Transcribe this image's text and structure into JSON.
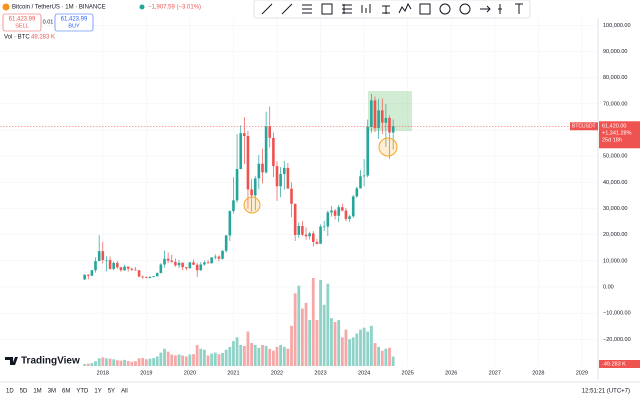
{
  "header": {
    "symbol": "Bitcoin / TetherUS · 1M · BINANCE",
    "change": "−1,907.59 (−3.01%)",
    "sell_price": "61,423.99",
    "sell_label": "SELL",
    "spread": "0.01",
    "buy_price": "61,423.99",
    "buy_label": "BUY",
    "vol_label": "Vol · BTC",
    "vol_value": "49.283 K"
  },
  "footer": {
    "ranges": [
      "1D",
      "5D",
      "1M",
      "3M",
      "6M",
      "YTD",
      "1Y",
      "5Y",
      "All"
    ],
    "clock": "12:51:21 (UTC+7)",
    "brand": "TradingView"
  },
  "badge": {
    "symbol": "BTCUSDT",
    "change": "+1,341.28%",
    "countdown": "25d 18h",
    "volume": "-49.283 K"
  },
  "chart_data": {
    "type": "candlestick",
    "x": [
      2017.583,
      2017.667,
      2017.75,
      2017.833,
      2017.917,
      2018.0,
      2018.083,
      2018.167,
      2018.25,
      2018.333,
      2018.417,
      2018.5,
      2018.583,
      2018.667,
      2018.75,
      2018.833,
      2018.917,
      2019.0,
      2019.083,
      2019.167,
      2019.25,
      2019.333,
      2019.417,
      2019.5,
      2019.583,
      2019.667,
      2019.75,
      2019.833,
      2019.917,
      2020.0,
      2020.083,
      2020.167,
      2020.25,
      2020.333,
      2020.417,
      2020.5,
      2020.583,
      2020.667,
      2020.75,
      2020.833,
      2020.917,
      2021.0,
      2021.083,
      2021.167,
      2021.25,
      2021.333,
      2021.417,
      2021.5,
      2021.583,
      2021.667,
      2021.75,
      2021.833,
      2021.917,
      2022.0,
      2022.083,
      2022.167,
      2022.25,
      2022.333,
      2022.417,
      2022.5,
      2022.583,
      2022.667,
      2022.75,
      2022.833,
      2022.917,
      2023.0,
      2023.083,
      2023.167,
      2023.25,
      2023.333,
      2023.417,
      2023.5,
      2023.583,
      2023.667,
      2023.75,
      2023.833,
      2023.917,
      2024.0,
      2024.083,
      2024.167,
      2024.25,
      2024.333,
      2024.417,
      2024.5,
      2024.583,
      2024.667
    ],
    "series": [
      {
        "name": "BTCUSDT",
        "up_color": "#26a69a",
        "down_color": "#ef5350",
        "open": [
          2900,
          4700,
          4300,
          6400,
          9900,
          13700,
          10300,
          10300,
          6900,
          9200,
          7500,
          6400,
          7800,
          7000,
          6600,
          6400,
          4000,
          3700,
          3400,
          3800,
          4100,
          5300,
          8600,
          10800,
          10100,
          9600,
          8300,
          9200,
          7600,
          7200,
          9400,
          8500,
          6400,
          8600,
          9400,
          9100,
          11300,
          11600,
          10800,
          13800,
          19700,
          29000,
          33100,
          45100,
          58800,
          57700,
          37300,
          35000,
          41500,
          47100,
          43800,
          61300,
          57000,
          46200,
          38500,
          43200,
          45500,
          37600,
          31800,
          19900,
          23300,
          20000,
          19400,
          20500,
          17200,
          16500,
          23100,
          23100,
          28500,
          29200,
          27200,
          30500,
          29200,
          26000,
          27000,
          34600,
          37700,
          42300,
          42600,
          61200,
          71300,
          60700,
          67500,
          62800,
          64600,
          59000
        ],
        "high": [
          4800,
          4900,
          6500,
          11300,
          19800,
          17200,
          11800,
          11700,
          9800,
          10000,
          7800,
          8500,
          7800,
          7400,
          7700,
          6500,
          4300,
          4100,
          4200,
          4100,
          5600,
          9100,
          13900,
          13200,
          12300,
          10900,
          10400,
          9500,
          7700,
          9600,
          10500,
          9200,
          9500,
          10100,
          10400,
          11400,
          12500,
          12100,
          14100,
          19900,
          29300,
          41900,
          58400,
          61800,
          64900,
          59600,
          41300,
          42400,
          50500,
          52900,
          67000,
          69000,
          59000,
          48000,
          45800,
          48200,
          47400,
          40000,
          31900,
          24700,
          25200,
          22800,
          21100,
          21400,
          18400,
          23900,
          25200,
          29200,
          31000,
          29800,
          31400,
          31800,
          30200,
          27500,
          35200,
          38400,
          44700,
          48900,
          64000,
          73800,
          72800,
          71900,
          72000,
          70000,
          65600,
          64000
        ],
        "low": [
          2600,
          2900,
          4100,
          5500,
          10900,
          9000,
          6000,
          6600,
          6400,
          7000,
          5800,
          6100,
          5900,
          6100,
          6200,
          3600,
          3200,
          3400,
          3400,
          3700,
          4100,
          5300,
          7400,
          9100,
          9300,
          7700,
          7300,
          6500,
          6400,
          6900,
          8400,
          3800,
          6200,
          8100,
          8900,
          8900,
          10500,
          9900,
          10400,
          13200,
          17600,
          28100,
          32300,
          45000,
          47000,
          30000,
          28800,
          29300,
          37300,
          39600,
          43300,
          53300,
          42000,
          32900,
          34300,
          37200,
          37600,
          26700,
          17600,
          18800,
          19500,
          18100,
          18200,
          15500,
          16300,
          16500,
          21400,
          19500,
          26900,
          25800,
          24800,
          28900,
          25200,
          24900,
          26500,
          34100,
          37600,
          38500,
          41900,
          59000,
          59200,
          56600,
          58400,
          53500,
          49000,
          52600
        ],
        "close": [
          4700,
          4300,
          6400,
          9900,
          13700,
          10300,
          10300,
          6900,
          9200,
          7500,
          6400,
          7800,
          7000,
          6600,
          6400,
          4000,
          3700,
          3400,
          3800,
          4100,
          5300,
          8600,
          10800,
          10100,
          9600,
          8300,
          9200,
          7600,
          7200,
          9400,
          8500,
          6400,
          8600,
          9400,
          9100,
          11300,
          11600,
          10800,
          13800,
          19700,
          29000,
          33100,
          45100,
          58800,
          57700,
          37300,
          35000,
          41500,
          47100,
          43800,
          61300,
          57000,
          46200,
          38500,
          43200,
          45500,
          37600,
          31800,
          19900,
          23300,
          20000,
          19400,
          20500,
          17200,
          16500,
          23100,
          23100,
          28500,
          29200,
          27200,
          30500,
          29200,
          26000,
          27000,
          34600,
          37700,
          42300,
          42600,
          61200,
          71300,
          60700,
          67500,
          62800,
          64600,
          59000,
          61400
        ]
      },
      {
        "name": "Vol · BTC",
        "up_color": "#8fd3c8",
        "down_color": "#f5a8a8",
        "values": [
          10,
          12,
          15,
          25,
          40,
          45,
          40,
          38,
          35,
          30,
          28,
          32,
          26,
          22,
          25,
          40,
          42,
          35,
          38,
          42,
          50,
          70,
          90,
          75,
          60,
          55,
          60,
          55,
          50,
          60,
          62,
          110,
          90,
          85,
          55,
          65,
          70,
          62,
          68,
          85,
          100,
          130,
          150,
          110,
          105,
          180,
          120,
          110,
          95,
          110,
          105,
          90,
          80,
          100,
          110,
          100,
          90,
          210,
          380,
          420,
          300,
          330,
          240,
          460,
          240,
          450,
          320,
          430,
          250,
          230,
          240,
          150,
          190,
          140,
          150,
          170,
          190,
          200,
          180,
          210,
          120,
          100,
          80,
          90,
          95,
          49.283
        ]
      }
    ],
    "last_price": {
      "value": 61420,
      "label": "61,420.00"
    },
    "xlim": [
      2015.64,
      2029.37
    ],
    "xticks": [
      2018,
      2019,
      2020,
      2021,
      2022,
      2023,
      2024,
      2025,
      2026,
      2027,
      2028,
      2029
    ],
    "ylim": [
      -30200,
      102800
    ],
    "yticks": [
      {
        "value": -20000,
        "label": "−20,000.00"
      },
      {
        "value": -10000,
        "label": "−10,000.00"
      },
      {
        "value": 0,
        "label": "0.00"
      },
      {
        "value": 10000,
        "label": "10,000.00"
      },
      {
        "value": 20000,
        "label": "20,000.00"
      },
      {
        "value": 30000,
        "label": "30,000.00"
      },
      {
        "value": 40000,
        "label": "40,000.00"
      },
      {
        "value": 50000,
        "label": "50,000.00"
      },
      {
        "value": 60000,
        "label": "60,000.00"
      },
      {
        "value": 70000,
        "label": "70,000.00"
      },
      {
        "value": 80000,
        "label": "80,000.00"
      },
      {
        "value": 90000,
        "label": "90,000.00"
      },
      {
        "value": 100000,
        "label": "100,000.00"
      }
    ],
    "grid": true
  }
}
